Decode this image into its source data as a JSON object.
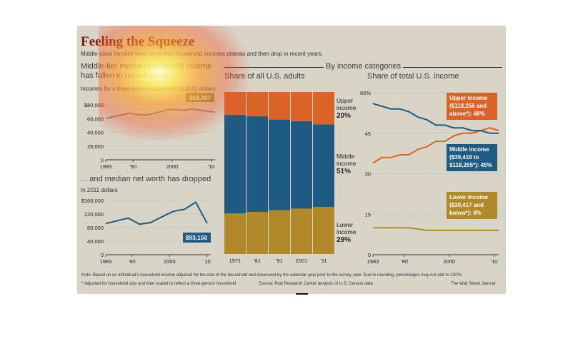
{
  "header": {
    "title": "Feeling the Squeeze",
    "subtitle": "Middle-class families have seen their household incomes plateau and then drop in recent years."
  },
  "section_label": "By income categories",
  "footer": {
    "note": "Note: Based on an individual's household income adjusted for the size of the household and measured by the calendar year prior to the survey year. Due to rounding, percentages may not add to 100%.",
    "footnote": "* Adjusted for household size and then scaled to reflect a three-person household",
    "source": "Source: Pew Research Center analysis of U.S. Census data",
    "credit": "The Wall Street Journal"
  },
  "colors": {
    "upper": "#d9642a",
    "middle": "#1e5a82",
    "lower": "#b08a2a",
    "line": "#1e5a82",
    "panel": "#d9d4c8",
    "label_green": "#7d9a3a"
  },
  "chart_data": [
    {
      "type": "line",
      "title": "Middle-tier median household income has fallen in recent years",
      "subtitle": "Incomes for a three-person household in 2011 dollars",
      "x_ticks": [
        "1983",
        "'90",
        "2000",
        "'10"
      ],
      "y_ticks": [
        "$80,000",
        "60,000",
        "40,000",
        "20,000",
        "0"
      ],
      "ylim": [
        0,
        80000
      ],
      "xlim": [
        1983,
        2011
      ],
      "callout": "$69,487",
      "x": [
        1983,
        1985,
        1987,
        1989,
        1991,
        1993,
        1995,
        1997,
        1999,
        2001,
        2003,
        2005,
        2007,
        2009,
        2011
      ],
      "values": [
        60000,
        63000,
        65000,
        68000,
        66000,
        65000,
        67000,
        70000,
        73000,
        73500,
        72000,
        74000,
        72500,
        71000,
        69487
      ]
    },
    {
      "type": "line",
      "title": "... and median net worth has dropped",
      "subtitle": "In 2011 dollars",
      "x_ticks": [
        "1983",
        "'90",
        "2000",
        "'10"
      ],
      "y_ticks": [
        "$160,000",
        "120,000",
        "80,000",
        "40,000",
        "0"
      ],
      "ylim": [
        0,
        160000
      ],
      "xlim": [
        1983,
        2011
      ],
      "callout": "$93,150",
      "x": [
        1983,
        1989,
        1992,
        1995,
        1998,
        2001,
        2004,
        2007,
        2010
      ],
      "values": [
        92000,
        108000,
        90000,
        95000,
        112000,
        128000,
        134000,
        155000,
        93150
      ]
    },
    {
      "type": "bar",
      "title": "Share of all U.S. adults",
      "categories": [
        "1971",
        "'81",
        "'91",
        "2001",
        "'11"
      ],
      "ylim": [
        0,
        100
      ],
      "series": [
        {
          "name": "Lower income",
          "values": [
            25,
            26,
            27,
            28,
            29
          ]
        },
        {
          "name": "Middle income",
          "values": [
            61,
            59,
            56,
            54,
            51
          ]
        },
        {
          "name": "Upper income",
          "values": [
            14,
            15,
            17,
            18,
            20
          ]
        }
      ],
      "labels": [
        {
          "line1": "Upper",
          "line2": "income",
          "pct": "20%"
        },
        {
          "line1": "Middle",
          "line2": "income",
          "pct": "51%"
        },
        {
          "line1": "Lower",
          "line2": "income",
          "pct": "29%"
        }
      ]
    },
    {
      "type": "line",
      "title": "Share of total U.S. income",
      "x_ticks": [
        "1983",
        "'90",
        "2000",
        "'10"
      ],
      "y_ticks": [
        "60%",
        "45",
        "30",
        "15",
        "0"
      ],
      "ylim": [
        0,
        60
      ],
      "xlim": [
        1983,
        2011
      ],
      "series": [
        {
          "name": "Upper income ($118,256 and above*): 46%",
          "x": [
            1983,
            1985,
            1987,
            1989,
            1991,
            1993,
            1995,
            1997,
            1999,
            2001,
            2003,
            2005,
            2007,
            2009,
            2011
          ],
          "values": [
            34,
            36,
            36,
            37,
            37,
            39,
            40,
            42,
            42,
            44,
            45,
            45,
            46,
            47,
            46
          ]
        },
        {
          "name": "Middle income ($39,418 to $118,255*): 45%",
          "x": [
            1983,
            1985,
            1987,
            1989,
            1991,
            1993,
            1995,
            1997,
            1999,
            2001,
            2003,
            2005,
            2007,
            2009,
            2011
          ],
          "values": [
            56,
            55,
            54,
            54,
            53,
            51,
            50,
            48,
            48,
            47,
            47,
            46,
            46,
            45,
            45
          ]
        },
        {
          "name": "Lower income ($39,417 and below*): 9%",
          "x": [
            1983,
            1987,
            1991,
            1995,
            1999,
            2003,
            2007,
            2011
          ],
          "values": [
            10,
            10,
            10,
            9,
            9,
            9,
            9,
            9
          ]
        }
      ],
      "callouts": [
        {
          "line1": "Upper income",
          "line2": "($118,256 and",
          "line3": "above*): 46%"
        },
        {
          "line1": "Middle income",
          "line2": "($39,418 to",
          "line3": "$118,255*): 45%"
        },
        {
          "line1": "Lower income",
          "line2": "($39,417 and",
          "line3": "below*): 9%"
        }
      ]
    }
  ]
}
